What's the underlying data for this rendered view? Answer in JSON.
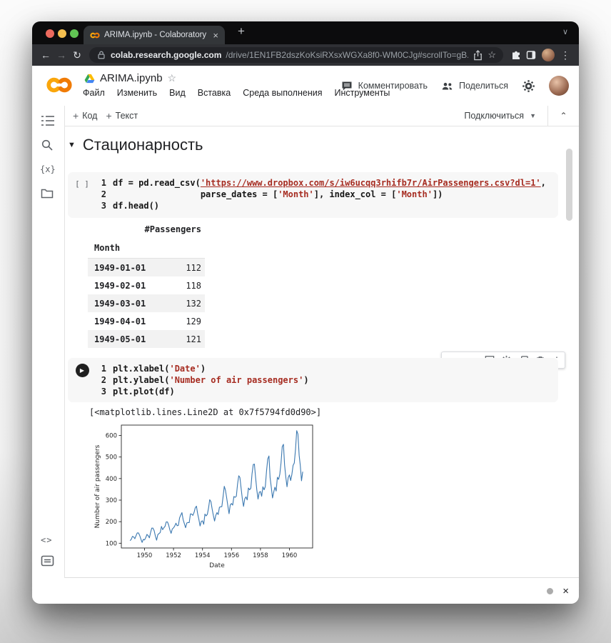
{
  "browser": {
    "tab_title": "ARIMA.ipynb - Colaboratory",
    "tab_close": "×",
    "new_tab_label": "+",
    "tabstrip_chevron": "∨",
    "back": "←",
    "forward": "→",
    "reload": "↻",
    "url_host": "colab.research.google.com",
    "url_path": "/drive/1EN1FB2dszKoKsiRXsxWGXa8f0-WM0CJg#scrollTo=gB...",
    "star": "☆",
    "menu_dots": "⋮"
  },
  "colab": {
    "doc_title": "ARIMA.ipynb",
    "star": "☆",
    "menu": [
      "Файл",
      "Изменить",
      "Вид",
      "Вставка",
      "Среда выполнения",
      "Инструменты"
    ],
    "comment_label": "Комментировать",
    "share_label": "Поделиться"
  },
  "toolbar": {
    "plus": "+",
    "add_code": "Код",
    "add_text": "Текст",
    "connect_label": "Подключиться",
    "connect_caret": "▼",
    "collapse": "⌃"
  },
  "sidebar": {
    "var_icon_text": "{x}",
    "snippets_icon_text": "<>"
  },
  "section": {
    "collapse_arrow": "▼",
    "title": "Стационарность"
  },
  "cell1": {
    "exec_indicator": "[ ]",
    "lines": [
      {
        "num": "1",
        "tokens": [
          {
            "c": "code",
            "t": "df = pd.read_csv("
          },
          {
            "c": "str-link",
            "t": "'https://www.dropbox.com/s/iw6ucqq3rhifb7r/AirPassengers.csv?dl=1'"
          },
          {
            "c": "code",
            "t": ","
          }
        ]
      },
      {
        "num": "2",
        "tokens": [
          {
            "c": "code",
            "t": "                 parse_dates = ["
          },
          {
            "c": "str",
            "t": "'Month'"
          },
          {
            "c": "code",
            "t": "], index_col = ["
          },
          {
            "c": "str",
            "t": "'Month'"
          },
          {
            "c": "code",
            "t": "])"
          }
        ]
      },
      {
        "num": "3",
        "tokens": [
          {
            "c": "code",
            "t": "df.head()"
          }
        ]
      }
    ]
  },
  "table": {
    "value_header": "#Passengers",
    "index_header": "Month",
    "rows": [
      [
        "1949-01-01",
        "112"
      ],
      [
        "1949-02-01",
        "118"
      ],
      [
        "1949-03-01",
        "132"
      ],
      [
        "1949-04-01",
        "129"
      ],
      [
        "1949-05-01",
        "121"
      ]
    ]
  },
  "cell2": {
    "play": "▶",
    "lines": [
      {
        "num": "1",
        "tokens": [
          {
            "c": "code",
            "t": "plt.xlabel("
          },
          {
            "c": "str",
            "t": "'Date'"
          },
          {
            "c": "code",
            "t": ")"
          }
        ]
      },
      {
        "num": "2",
        "tokens": [
          {
            "c": "code",
            "t": "plt.ylabel("
          },
          {
            "c": "str",
            "t": "'Number of air passengers'"
          },
          {
            "c": "code",
            "t": ")"
          }
        ]
      },
      {
        "num": "3",
        "tokens": [
          {
            "c": "code",
            "t": "plt.plot(df)"
          }
        ]
      }
    ],
    "output_text": "[<matplotlib.lines.Line2D at 0x7f5794fd0d90>]"
  },
  "cell_toolbar": {
    "up": "↑",
    "down": "↓",
    "more": "⋮"
  },
  "footer": {
    "close": "×"
  },
  "chart_data": {
    "type": "line",
    "title": "",
    "xlabel": "Date",
    "ylabel": "Number of air passengers",
    "x_start_year": 1949,
    "points_per_year": 12,
    "xlim": [
      1948.4,
      1961.6
    ],
    "ylim": [
      78,
      648
    ],
    "xticks": [
      1950,
      1952,
      1954,
      1956,
      1958,
      1960
    ],
    "yticks": [
      100,
      200,
      300,
      400,
      500,
      600
    ],
    "grid": false,
    "legend": "none",
    "line_color": "#3b78b0",
    "series": [
      {
        "name": "#Passengers",
        "values": [
          112,
          118,
          132,
          129,
          121,
          135,
          148,
          148,
          136,
          119,
          104,
          118,
          115,
          126,
          141,
          135,
          125,
          149,
          170,
          170,
          158,
          133,
          114,
          140,
          145,
          150,
          178,
          163,
          172,
          178,
          199,
          199,
          184,
          162,
          146,
          166,
          171,
          180,
          193,
          181,
          183,
          218,
          230,
          242,
          209,
          191,
          172,
          194,
          196,
          196,
          236,
          235,
          229,
          243,
          264,
          272,
          237,
          211,
          180,
          201,
          204,
          188,
          235,
          227,
          234,
          264,
          302,
          293,
          259,
          229,
          203,
          229,
          242,
          233,
          267,
          269,
          270,
          315,
          364,
          347,
          312,
          274,
          237,
          278,
          284,
          277,
          317,
          313,
          318,
          374,
          413,
          405,
          355,
          306,
          271,
          306,
          315,
          301,
          356,
          348,
          355,
          422,
          465,
          467,
          404,
          347,
          305,
          336,
          340,
          318,
          362,
          348,
          363,
          435,
          491,
          505,
          404,
          359,
          310,
          337,
          360,
          342,
          406,
          396,
          420,
          472,
          548,
          559,
          463,
          407,
          362,
          405,
          417,
          391,
          419,
          461,
          472,
          535,
          622,
          606,
          508,
          461,
          390,
          432
        ]
      }
    ]
  }
}
